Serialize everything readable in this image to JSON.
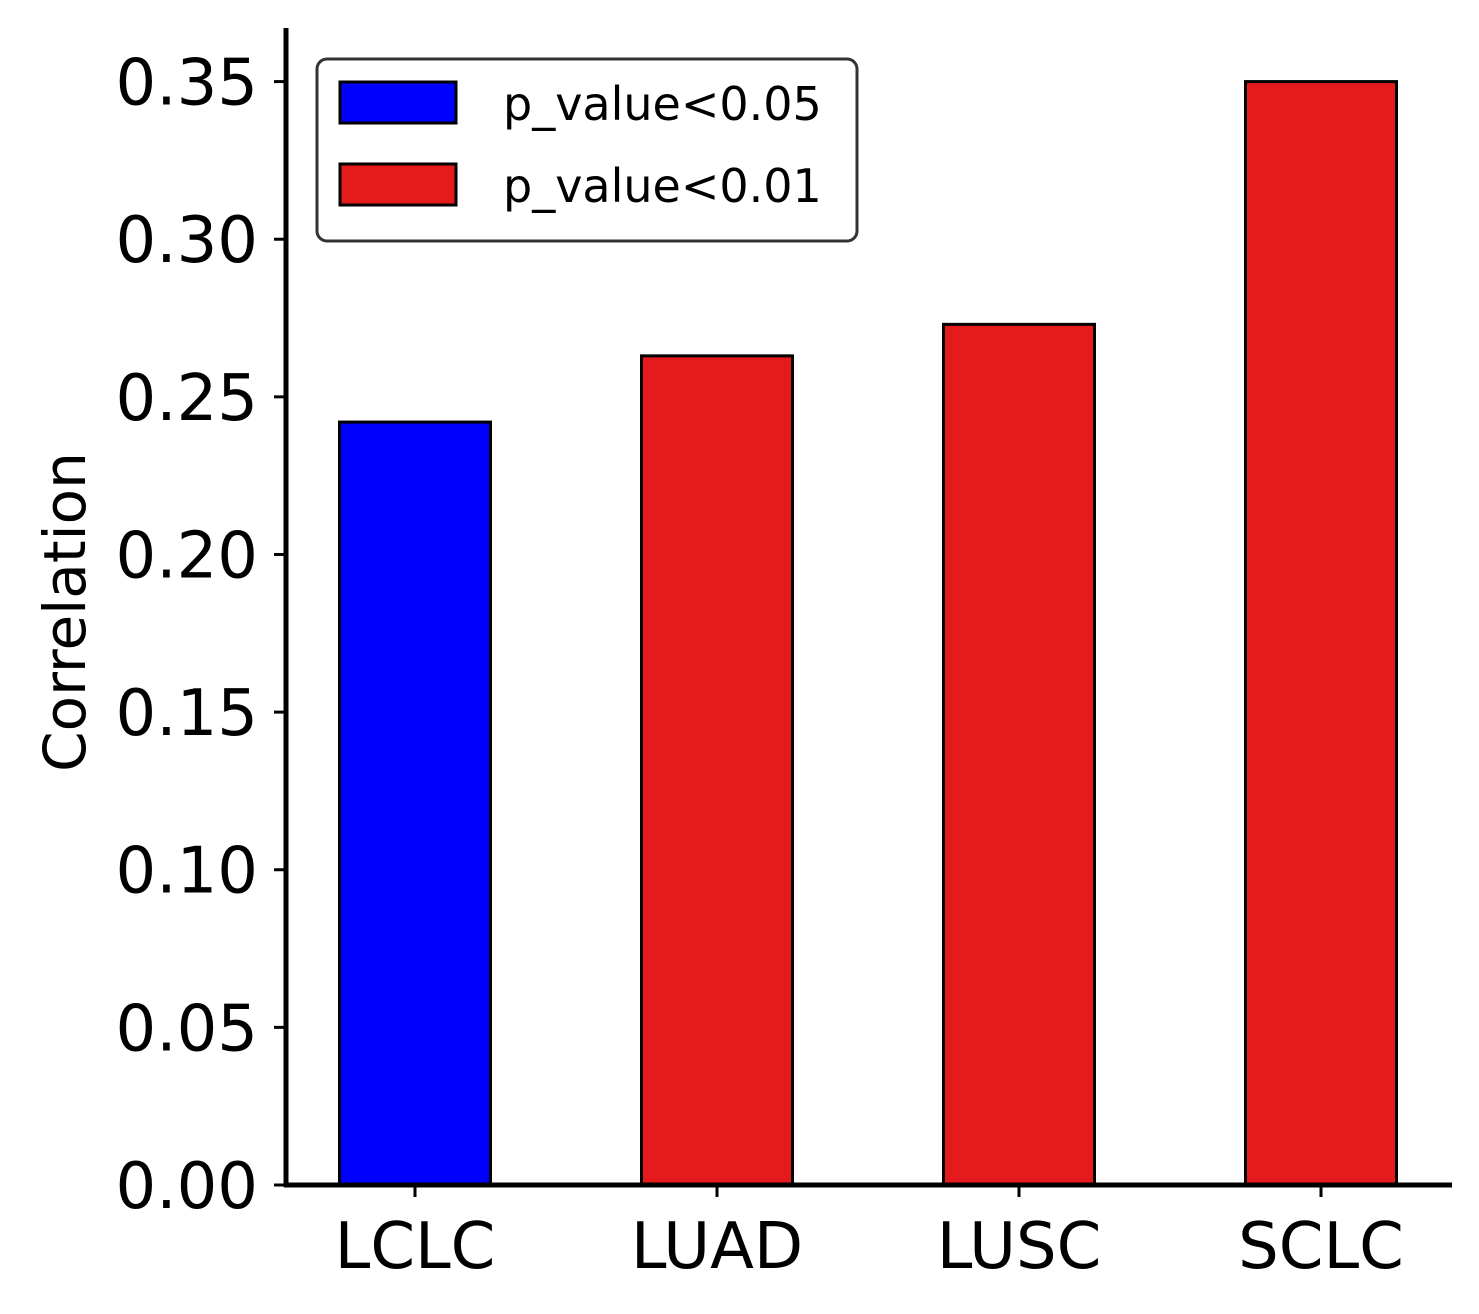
{
  "chart_data": {
    "type": "bar",
    "categories": [
      "LCLC",
      "LUAD",
      "LUSC",
      "SCLC"
    ],
    "values": [
      0.242,
      0.263,
      0.273,
      0.35
    ],
    "bar_groups": [
      "p_value<0.05",
      "p_value<0.01",
      "p_value<0.01",
      "p_value<0.01"
    ],
    "xlabel": "",
    "ylabel": "Correlation",
    "ylim": [
      0,
      0.367
    ],
    "yticks": [
      0.0,
      0.05,
      0.1,
      0.15,
      0.2,
      0.25,
      0.3,
      0.35
    ],
    "ytick_labels": [
      "0.00",
      "0.05",
      "0.10",
      "0.15",
      "0.20",
      "0.25",
      "0.30",
      "0.35"
    ],
    "grid": false,
    "legend": {
      "placement": "top-left",
      "entries": [
        {
          "label": "p_value<0.05",
          "color": "#0000ff"
        },
        {
          "label": "p_value<0.01",
          "color": "#e41a1c"
        }
      ]
    },
    "colors": {
      "p_value<0.05": "#0000ff",
      "p_value<0.01": "#e41a1c",
      "edge": "#000000"
    }
  }
}
